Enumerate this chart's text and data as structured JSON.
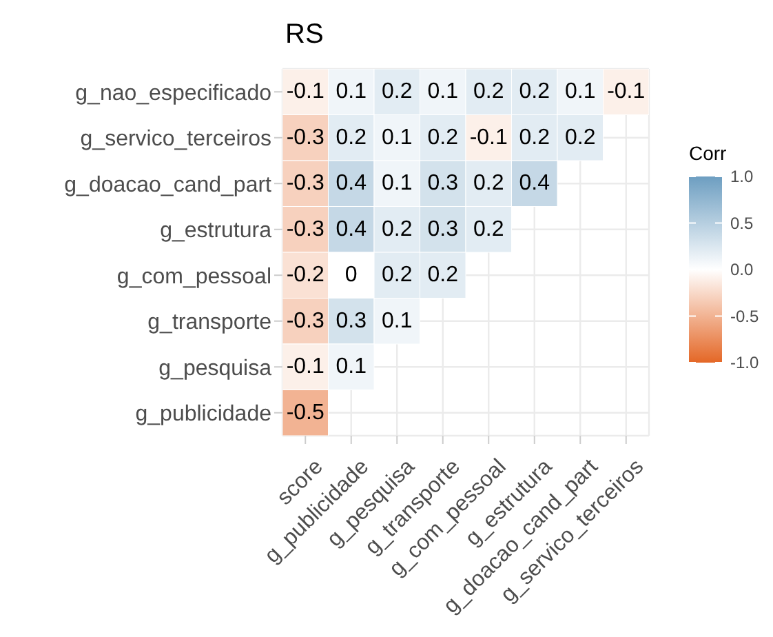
{
  "chart_data": {
    "type": "heatmap",
    "title": "RS",
    "clabel": "Corr",
    "categories": [
      "score",
      "g_publicidade",
      "g_pesquisa",
      "g_transporte",
      "g_com_pessoal",
      "g_estrutura",
      "g_doacao_cand_part",
      "g_servico_terceiros"
    ],
    "y_categories": [
      "g_nao_especificado",
      "g_servico_terceiros",
      "g_doacao_cand_part",
      "g_estrutura",
      "g_com_pessoal",
      "g_transporte",
      "g_pesquisa",
      "g_publicidade"
    ],
    "cells": [
      [
        -0.1,
        0.1,
        0.2,
        0.1,
        0.2,
        0.2,
        0.1,
        -0.1
      ],
      [
        -0.3,
        0.2,
        0.1,
        0.2,
        -0.1,
        0.2,
        0.2,
        null
      ],
      [
        -0.3,
        0.4,
        0.1,
        0.3,
        0.2,
        0.4,
        null,
        null
      ],
      [
        -0.3,
        0.4,
        0.2,
        0.3,
        0.2,
        null,
        null,
        null
      ],
      [
        -0.2,
        0,
        0.2,
        0.2,
        null,
        null,
        null,
        null
      ],
      [
        -0.3,
        0.3,
        0.1,
        null,
        null,
        null,
        null,
        null
      ],
      [
        -0.1,
        0.1,
        null,
        null,
        null,
        null,
        null,
        null
      ],
      [
        -0.5,
        null,
        null,
        null,
        null,
        null,
        null,
        null
      ]
    ],
    "clim": [
      -1,
      1
    ],
    "cticks": [
      {
        "value": 1,
        "label": "1.0"
      },
      {
        "value": 0.5,
        "label": "0.5"
      },
      {
        "value": 0,
        "label": "0.0"
      },
      {
        "value": -0.5,
        "label": "-0.5"
      },
      {
        "value": -1,
        "label": "-1.0"
      }
    ],
    "data_labels": true,
    "grid": true
  }
}
